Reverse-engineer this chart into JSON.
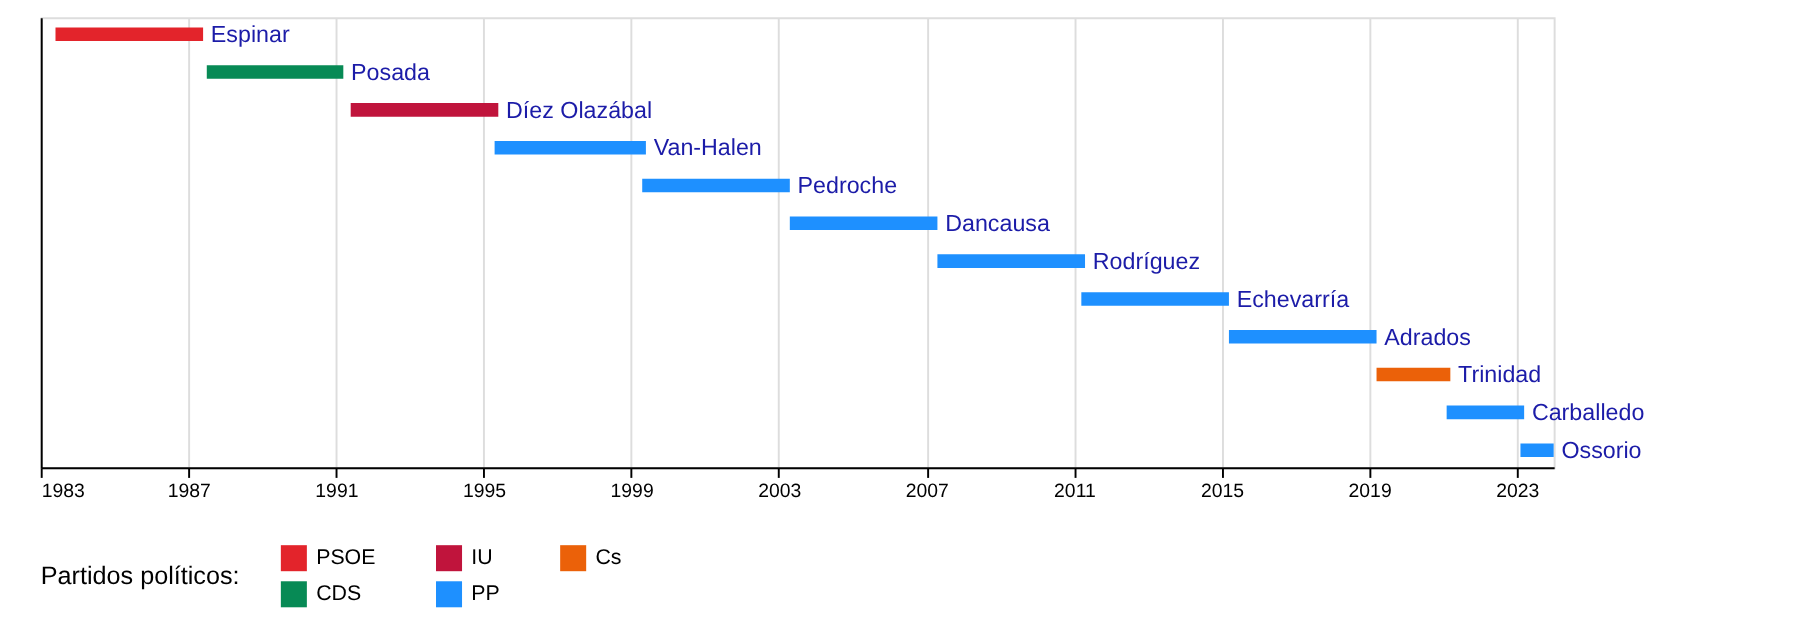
{
  "chart_data": {
    "type": "bar",
    "orientation": "horizontal",
    "categories": [
      "Espinar",
      "Posada",
      "Díez Olazábal",
      "Van-Halen",
      "Pedroche",
      "Dancausa",
      "Rodríguez",
      "Echevarría",
      "Adrados",
      "Trinidad",
      "Carballedo",
      "Ossorio"
    ],
    "series": [
      {
        "name": "PSOE",
        "color": "#e3242b",
        "base": [
          1983.4,
          null,
          null,
          null,
          null,
          null,
          null,
          null,
          null,
          null,
          null,
          null
        ],
        "values": [
          4.0,
          null,
          null,
          null,
          null,
          null,
          null,
          null,
          null,
          null,
          null,
          null
        ]
      },
      {
        "name": "IU",
        "color": "#c0143c",
        "base": [
          null,
          null,
          1991.4,
          null,
          null,
          null,
          null,
          null,
          null,
          null,
          null,
          null
        ],
        "values": [
          null,
          null,
          4.0,
          null,
          null,
          null,
          null,
          null,
          null,
          null,
          null,
          null
        ]
      },
      {
        "name": "Cs",
        "color": "#eb6109",
        "base": [
          null,
          null,
          null,
          null,
          null,
          null,
          null,
          null,
          null,
          2019.2,
          null,
          null
        ],
        "values": [
          null,
          null,
          null,
          null,
          null,
          null,
          null,
          null,
          null,
          2.0,
          null,
          null
        ]
      },
      {
        "name": "CDS",
        "color": "#078a55",
        "base": [
          null,
          1987.5,
          null,
          null,
          null,
          null,
          null,
          null,
          null,
          null,
          null,
          null
        ],
        "values": [
          null,
          3.7,
          null,
          null,
          null,
          null,
          null,
          null,
          null,
          null,
          null,
          null
        ]
      },
      {
        "name": "PP",
        "color": "#1e90ff",
        "base": [
          null,
          null,
          null,
          1995.3,
          1999.3,
          2003.3,
          2007.3,
          2011.2,
          2015.2,
          null,
          2021.1,
          2023.1
        ],
        "values": [
          null,
          null,
          null,
          4.1,
          4.0,
          4.0,
          4.0,
          4.0,
          4.0,
          null,
          2.1,
          0.9
        ]
      }
    ],
    "legend_title": "Partidos políticos:",
    "legend": "bottom left",
    "xlim": [
      1983,
      2024
    ],
    "xticks": [
      1983,
      1987,
      1991,
      1995,
      1999,
      2003,
      2007,
      2011,
      2015,
      2019,
      2023
    ],
    "grid": "x",
    "tick_labels": "x"
  }
}
